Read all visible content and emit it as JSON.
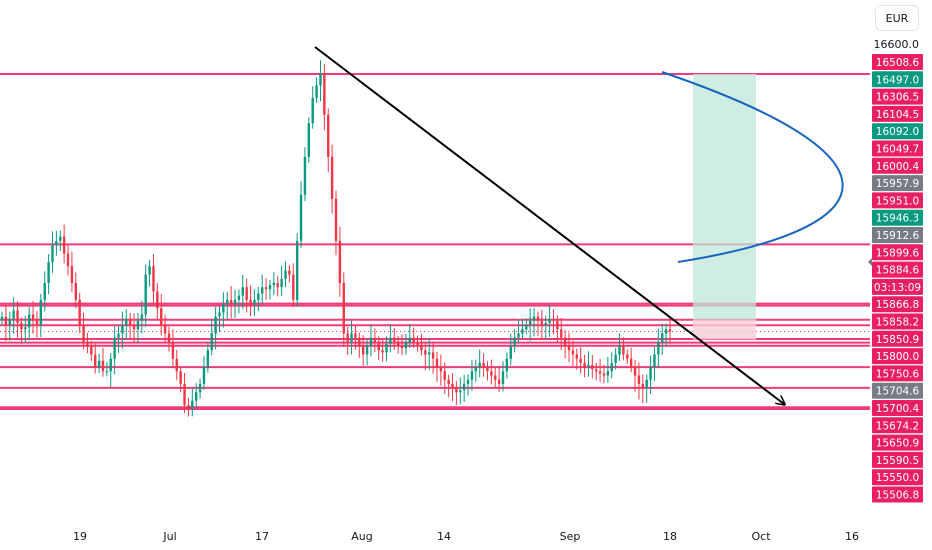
{
  "currency": "EUR",
  "colors": {
    "level_line": "#f23c7a",
    "badge_pink": "#e91e63",
    "badge_green": "#089981",
    "badge_gray": "#787b86",
    "candle_up": "#089981",
    "candle_down": "#f23645",
    "trendline": "#000000",
    "curve": "#1565c0",
    "profit_zone": "#bfe5dc",
    "loss_zone": "#f8d0d8"
  },
  "x_axis_labels": [
    "19",
    "Jul",
    "17",
    "Aug",
    "14",
    "Sep",
    "18",
    "Oct",
    "16"
  ],
  "price_axis": {
    "top_label": "16600.0",
    "badges": [
      {
        "text": "16508.6",
        "color": "pink"
      },
      {
        "text": "16497.0",
        "color": "green"
      },
      {
        "text": "16306.5",
        "color": "pink"
      },
      {
        "text": "16104.5",
        "color": "pink"
      },
      {
        "text": "16092.0",
        "color": "green"
      },
      {
        "text": "16049.7",
        "color": "pink"
      },
      {
        "text": "16000.4",
        "color": "pink"
      },
      {
        "text": "15957.9",
        "color": "gray"
      },
      {
        "text": "15951.0",
        "color": "pink"
      },
      {
        "text": "15946.3",
        "color": "green"
      },
      {
        "text": "15912.6",
        "color": "gray"
      },
      {
        "text": "15899.6",
        "color": "pink"
      },
      {
        "text": "15884.6",
        "color": "pink"
      },
      {
        "text": "03:13:09",
        "color": "pink"
      },
      {
        "text": "15866.8",
        "color": "pink"
      },
      {
        "text": "15858.2",
        "color": "pink"
      },
      {
        "text": "15850.9",
        "color": "pink"
      },
      {
        "text": "15800.0",
        "color": "pink"
      },
      {
        "text": "15750.6",
        "color": "pink"
      },
      {
        "text": "15704.6",
        "color": "gray"
      },
      {
        "text": "15700.4",
        "color": "pink"
      },
      {
        "text": "15674.2",
        "color": "pink"
      },
      {
        "text": "15650.9",
        "color": "pink"
      },
      {
        "text": "15590.5",
        "color": "pink"
      },
      {
        "text": "15550.0",
        "color": "pink"
      },
      {
        "text": "15506.8",
        "color": "pink"
      }
    ]
  },
  "chart_data": {
    "type": "candlestick",
    "instrument_currency": "EUR",
    "last_price": 15884.6,
    "countdown": "03:13:09",
    "horizontal_levels": [
      16497.0,
      16092.0,
      15951.0,
      15946.3,
      15912.6,
      15899.6,
      15884.6,
      15866.8,
      15858.2,
      15850.9,
      15800.0,
      15750.6,
      15704.6,
      15700.4
    ],
    "candles_close": [
      15920,
      15900,
      15915,
      15935,
      15905,
      15890,
      15895,
      15925,
      15910,
      15900,
      15960,
      16000,
      16050,
      16090,
      16100,
      16110,
      16070,
      16040,
      16000,
      15960,
      15900,
      15860,
      15850,
      15830,
      15800,
      15815,
      15790,
      15790,
      15820,
      15870,
      15880,
      15900,
      15915,
      15900,
      15890,
      15910,
      15925,
      16020,
      16040,
      15980,
      15940,
      15900,
      15880,
      15860,
      15820,
      15790,
      15760,
      15710,
      15700,
      15720,
      15740,
      15760,
      15800,
      15840,
      15880,
      15920,
      15930,
      15950,
      15960,
      15950,
      15960,
      15970,
      15990,
      15960,
      15950,
      15960,
      15975,
      15990,
      15985,
      15995,
      16000,
      15990,
      16010,
      16030,
      16020,
      15960,
      16100,
      16210,
      16300,
      16380,
      16440,
      16470,
      16497,
      16400,
      16300,
      16200,
      16100,
      16000,
      15880,
      15860,
      15880,
      15870,
      15850,
      15830,
      15850,
      15870,
      15860,
      15840,
      15835,
      15855,
      15870,
      15860,
      15850,
      15845,
      15860,
      15870,
      15860,
      15850,
      15840,
      15830,
      15835,
      15820,
      15800,
      15790,
      15770,
      15760,
      15750,
      15740,
      15745,
      15760,
      15770,
      15790,
      15800,
      15810,
      15800,
      15790,
      15780,
      15770,
      15760,
      15790,
      15820,
      15850,
      15870,
      15880,
      15890,
      15900,
      15910,
      15920,
      15910,
      15900,
      15905,
      15915,
      15910,
      15890,
      15870,
      15850,
      15840,
      15830,
      15820,
      15810,
      15800,
      15805,
      15795,
      15790,
      15785,
      15780,
      15790,
      15810,
      15830,
      15850,
      15830,
      15820,
      15800,
      15780,
      15760,
      15750,
      15770,
      15800,
      15830,
      15860,
      15880,
      15890,
      15884.6
    ],
    "trendline": {
      "from": {
        "date": "Jul 25",
        "price": 16560
      },
      "to": {
        "date": "Oct 1",
        "price": 15710
      }
    },
    "position": {
      "entry": 15912.6,
      "target": 16497.0,
      "stop": 15884.6
    },
    "x_ticks": [
      "19",
      "Jul",
      "17",
      "Aug",
      "14",
      "Sep",
      "18",
      "Oct",
      "16"
    ]
  }
}
